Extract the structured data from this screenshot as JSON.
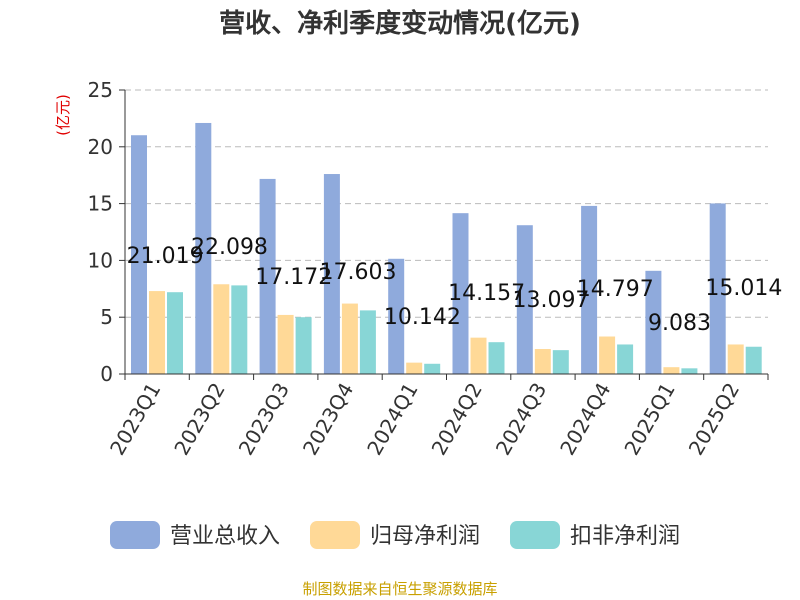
{
  "chart_data": {
    "type": "bar",
    "title": "营收、净利季度变动情况(亿元)",
    "unit_label": "(亿元)",
    "source": "制图数据来自恒生聚源数据库",
    "categories": [
      "2023Q1",
      "2023Q2",
      "2023Q3",
      "2023Q4",
      "2024Q1",
      "2024Q2",
      "2024Q3",
      "2024Q4",
      "2025Q1",
      "2025Q2"
    ],
    "ylim": [
      0,
      25
    ],
    "yticks": [
      0,
      5,
      10,
      15,
      20,
      25
    ],
    "grid": true,
    "legend_position": "bottom",
    "series": [
      {
        "name": "营业总收入",
        "color": "#8faadc",
        "values": [
          21.019,
          22.098,
          17.172,
          17.603,
          10.142,
          14.157,
          13.097,
          14.797,
          9.083,
          15.014
        ],
        "data_labels": [
          "21.019",
          "22.098",
          "17.172",
          "17.603",
          "10.142",
          "14.157",
          "13.097",
          "14.797",
          "9.083",
          "15.014"
        ]
      },
      {
        "name": "归母净利润",
        "color": "#ffd997",
        "values": [
          7.3,
          7.9,
          5.2,
          6.2,
          1.0,
          3.2,
          2.2,
          3.3,
          0.6,
          2.6
        ]
      },
      {
        "name": "扣非净利润",
        "color": "#88d6d6",
        "values": [
          7.2,
          7.8,
          5.0,
          5.6,
          0.9,
          2.8,
          2.1,
          2.6,
          0.5,
          2.4
        ]
      }
    ]
  }
}
